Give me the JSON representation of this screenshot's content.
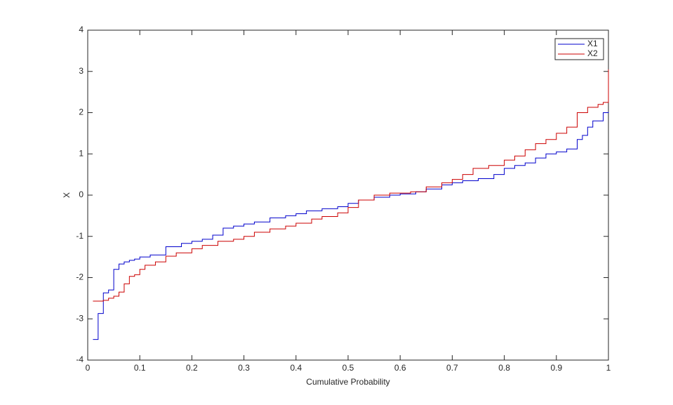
{
  "chart_data": {
    "type": "stairs",
    "xlabel": "Cumulative Probability",
    "ylabel": "X",
    "xlim": [
      0,
      1
    ],
    "ylim": [
      -4,
      4
    ],
    "xticks": [
      0,
      0.1,
      0.2,
      0.3,
      0.4,
      0.5,
      0.6,
      0.7,
      0.8,
      0.9,
      1
    ],
    "yticks": [
      -4,
      -3,
      -2,
      -1,
      0,
      1,
      2,
      3,
      4
    ],
    "legend": "top-right",
    "series": [
      {
        "name": "X1",
        "color": "#0000cc",
        "x": [
          0.01,
          0.02,
          0.03,
          0.04,
          0.05,
          0.06,
          0.07,
          0.08,
          0.09,
          0.1,
          0.12,
          0.15,
          0.18,
          0.2,
          0.22,
          0.24,
          0.26,
          0.28,
          0.3,
          0.32,
          0.35,
          0.38,
          0.4,
          0.42,
          0.45,
          0.48,
          0.5,
          0.52,
          0.55,
          0.58,
          0.6,
          0.63,
          0.65,
          0.68,
          0.7,
          0.72,
          0.75,
          0.78,
          0.8,
          0.82,
          0.84,
          0.86,
          0.88,
          0.9,
          0.92,
          0.94,
          0.95,
          0.96,
          0.97,
          0.99,
          1
        ],
        "values": [
          -3.5,
          -2.87,
          -2.37,
          -2.3,
          -1.8,
          -1.67,
          -1.62,
          -1.58,
          -1.55,
          -1.5,
          -1.45,
          -1.25,
          -1.17,
          -1.12,
          -1.07,
          -0.97,
          -0.8,
          -0.75,
          -0.7,
          -0.65,
          -0.55,
          -0.5,
          -0.45,
          -0.38,
          -0.33,
          -0.28,
          -0.2,
          -0.12,
          -0.05,
          0,
          0.03,
          0.08,
          0.15,
          0.25,
          0.3,
          0.35,
          0.4,
          0.5,
          0.65,
          0.72,
          0.78,
          0.9,
          1.0,
          1.05,
          1.12,
          1.35,
          1.45,
          1.65,
          1.8,
          2.0,
          2.02
        ]
      },
      {
        "name": "X2",
        "color": "#cc0000",
        "x": [
          0.01,
          0.03,
          0.04,
          0.05,
          0.06,
          0.07,
          0.08,
          0.09,
          0.1,
          0.11,
          0.13,
          0.15,
          0.17,
          0.2,
          0.22,
          0.25,
          0.28,
          0.3,
          0.32,
          0.35,
          0.38,
          0.4,
          0.43,
          0.45,
          0.48,
          0.5,
          0.52,
          0.55,
          0.58,
          0.62,
          0.65,
          0.68,
          0.7,
          0.72,
          0.74,
          0.77,
          0.8,
          0.82,
          0.84,
          0.86,
          0.88,
          0.9,
          0.92,
          0.94,
          0.96,
          0.98,
          0.99,
          1
        ],
        "values": [
          -2.57,
          -2.55,
          -2.5,
          -2.45,
          -2.35,
          -2.15,
          -1.97,
          -1.93,
          -1.8,
          -1.7,
          -1.62,
          -1.48,
          -1.4,
          -1.3,
          -1.22,
          -1.12,
          -1.07,
          -1.0,
          -0.9,
          -0.82,
          -0.75,
          -0.68,
          -0.58,
          -0.52,
          -0.43,
          -0.3,
          -0.12,
          0.0,
          0.05,
          0.08,
          0.2,
          0.3,
          0.38,
          0.5,
          0.65,
          0.72,
          0.85,
          0.95,
          1.1,
          1.25,
          1.35,
          1.5,
          1.65,
          2.0,
          2.13,
          2.2,
          2.25,
          3.05
        ]
      }
    ]
  }
}
